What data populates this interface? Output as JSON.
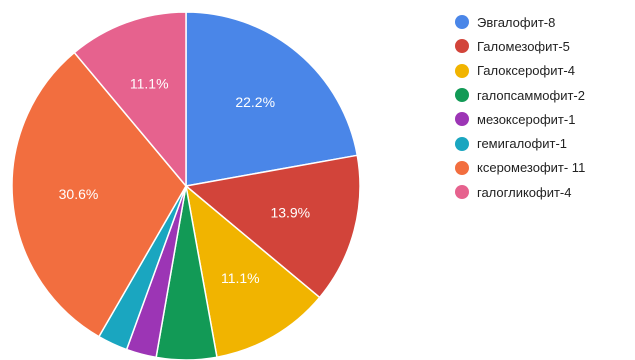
{
  "chart_data": {
    "type": "pie",
    "title": "",
    "start_angle_deg": 0,
    "direction": "clockwise",
    "legend_position": "right",
    "slices": [
      {
        "label": "Эвгалофит-8",
        "value": 22.2,
        "display": "22.2%",
        "color": "#4a86e8",
        "show_label": true
      },
      {
        "label": "Галомезофит-5",
        "value": 13.9,
        "display": "13.9%",
        "color": "#d2443a",
        "show_label": true
      },
      {
        "label": "Галоксерофит-4",
        "value": 11.1,
        "display": "11.1%",
        "color": "#f1b400",
        "show_label": true
      },
      {
        "label": "галопсаммофит-2",
        "value": 5.6,
        "display": "",
        "color": "#129a56",
        "show_label": false
      },
      {
        "label": "мезоксерофит-1",
        "value": 2.8,
        "display": "",
        "color": "#9c35b5",
        "show_label": false
      },
      {
        "label": "гемигалофит-1",
        "value": 2.8,
        "display": "",
        "color": "#1aa6c0",
        "show_label": false
      },
      {
        "label": "ксеромезофит- 11",
        "value": 30.6,
        "display": "30.6%",
        "color": "#f26e3f",
        "show_label": true
      },
      {
        "label": "галогликофит-4",
        "value": 11.1,
        "display": "11.1%",
        "color": "#e6628e",
        "show_label": true
      }
    ]
  }
}
